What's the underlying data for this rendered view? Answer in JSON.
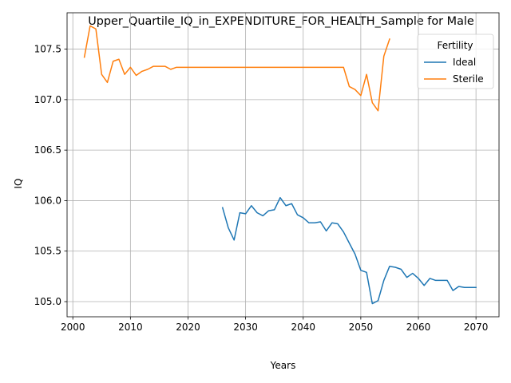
{
  "chart_data": {
    "type": "line",
    "title": "Upper_Quartile_IQ_in_EXPENDITURE_FOR_HEALTH_Sample for Male",
    "xlabel": "Years",
    "ylabel": "IQ",
    "xlim": [
      1999,
      2074
    ],
    "ylim": [
      104.85,
      107.86
    ],
    "x_ticks": [
      2000,
      2010,
      2020,
      2030,
      2040,
      2050,
      2060,
      2070
    ],
    "y_ticks": [
      105.0,
      105.5,
      106.0,
      106.5,
      107.0,
      107.5
    ],
    "x_tick_labels": [
      "2000",
      "2010",
      "2020",
      "2030",
      "2040",
      "2050",
      "2060",
      "2070"
    ],
    "y_tick_labels": [
      "105.0",
      "105.5",
      "106.0",
      "106.5",
      "107.0",
      "107.5"
    ],
    "grid": true,
    "legend": {
      "title": "Fertility",
      "position": "top-right"
    },
    "series": [
      {
        "name": "Ideal",
        "color": "#1f77b4",
        "x": [
          2026,
          2027,
          2028,
          2029,
          2030,
          2031,
          2032,
          2033,
          2034,
          2035,
          2036,
          2037,
          2038,
          2039,
          2040,
          2041,
          2042,
          2043,
          2044,
          2045,
          2046,
          2047,
          2048,
          2049,
          2050,
          2051,
          2052,
          2053,
          2054,
          2055,
          2056,
          2057,
          2058,
          2059,
          2060,
          2061,
          2062,
          2063,
          2064,
          2065,
          2066,
          2067,
          2068,
          2069,
          2070
        ],
        "y": [
          105.93,
          105.73,
          105.61,
          105.88,
          105.87,
          105.95,
          105.88,
          105.85,
          105.9,
          105.91,
          106.03,
          105.95,
          105.97,
          105.86,
          105.83,
          105.78,
          105.78,
          105.79,
          105.7,
          105.78,
          105.77,
          105.69,
          105.58,
          105.47,
          105.31,
          105.29,
          104.98,
          105.01,
          105.21,
          105.35,
          105.34,
          105.32,
          105.24,
          105.28,
          105.23,
          105.16,
          105.23,
          105.21,
          105.21,
          105.21,
          105.11,
          105.15,
          105.14,
          105.14,
          105.14
        ]
      },
      {
        "name": "Sterile",
        "color": "#ff7f0e",
        "x": [
          2002,
          2003,
          2004,
          2005,
          2006,
          2007,
          2008,
          2009,
          2010,
          2011,
          2012,
          2013,
          2014,
          2015,
          2016,
          2017,
          2018,
          2019,
          2020,
          2021,
          2022,
          2023,
          2024,
          2025,
          2026,
          2027,
          2028,
          2029,
          2030,
          2031,
          2032,
          2033,
          2034,
          2035,
          2036,
          2037,
          2038,
          2039,
          2040,
          2041,
          2042,
          2043,
          2044,
          2045,
          2046,
          2047,
          2048,
          2049,
          2050,
          2051,
          2052,
          2053,
          2054,
          2055
        ],
        "y": [
          107.42,
          107.73,
          107.7,
          107.25,
          107.17,
          107.38,
          107.4,
          107.25,
          107.32,
          107.24,
          107.28,
          107.3,
          107.33,
          107.33,
          107.33,
          107.3,
          107.32,
          107.32,
          107.32,
          107.32,
          107.32,
          107.32,
          107.32,
          107.32,
          107.32,
          107.32,
          107.32,
          107.32,
          107.32,
          107.32,
          107.32,
          107.32,
          107.32,
          107.32,
          107.32,
          107.32,
          107.32,
          107.32,
          107.32,
          107.32,
          107.32,
          107.32,
          107.32,
          107.32,
          107.32,
          107.32,
          107.13,
          107.1,
          107.04,
          107.25,
          106.97,
          106.89,
          107.43,
          107.6
        ]
      }
    ]
  }
}
